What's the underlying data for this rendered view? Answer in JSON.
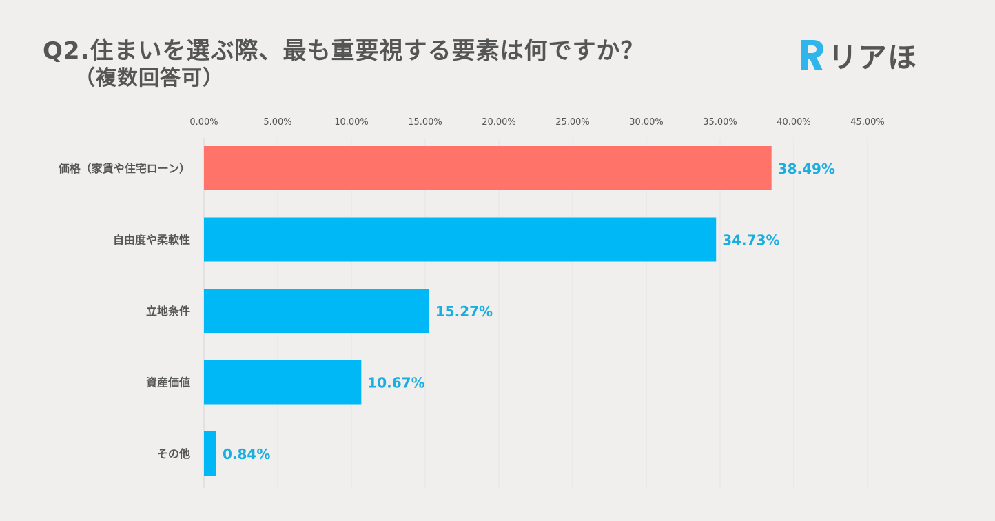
{
  "header": {
    "title": "Q2.住まいを選ぶ際、最も重要視する要素は何ですか？",
    "subtitle": "（複数回答可）",
    "logo_text": "リアほ",
    "logo_mark_letter": "R"
  },
  "colors": {
    "background": "#f0efed",
    "highlight_bar": "#ff7369",
    "bar": "#00b8f5",
    "value_label": "#1aaee0",
    "text": "#555555",
    "logo_mark": "#2eb6ec"
  },
  "chart_data": {
    "type": "bar",
    "orientation": "horizontal",
    "title": "Q2.住まいを選ぶ際、最も重要視する要素は何ですか？（複数回答可）",
    "xlabel": "",
    "ylabel": "",
    "xlim": [
      0,
      45
    ],
    "grid": true,
    "x_ticks": [
      "0.00%",
      "5.00%",
      "10.00%",
      "15.00%",
      "20.00%",
      "25.00%",
      "30.00%",
      "35.00%",
      "40.00%",
      "45.00%"
    ],
    "x_tick_values": [
      0,
      5,
      10,
      15,
      20,
      25,
      30,
      35,
      40,
      45
    ],
    "categories": [
      "価格（家賃や住宅ローン）",
      "自由度や柔軟性",
      "立地条件",
      "資産価値",
      "その他"
    ],
    "values": [
      38.49,
      34.73,
      15.27,
      10.67,
      0.84
    ],
    "value_labels": [
      "38.49%",
      "34.73%",
      "15.27%",
      "10.67%",
      "0.84%"
    ],
    "highlight_index": 0
  }
}
